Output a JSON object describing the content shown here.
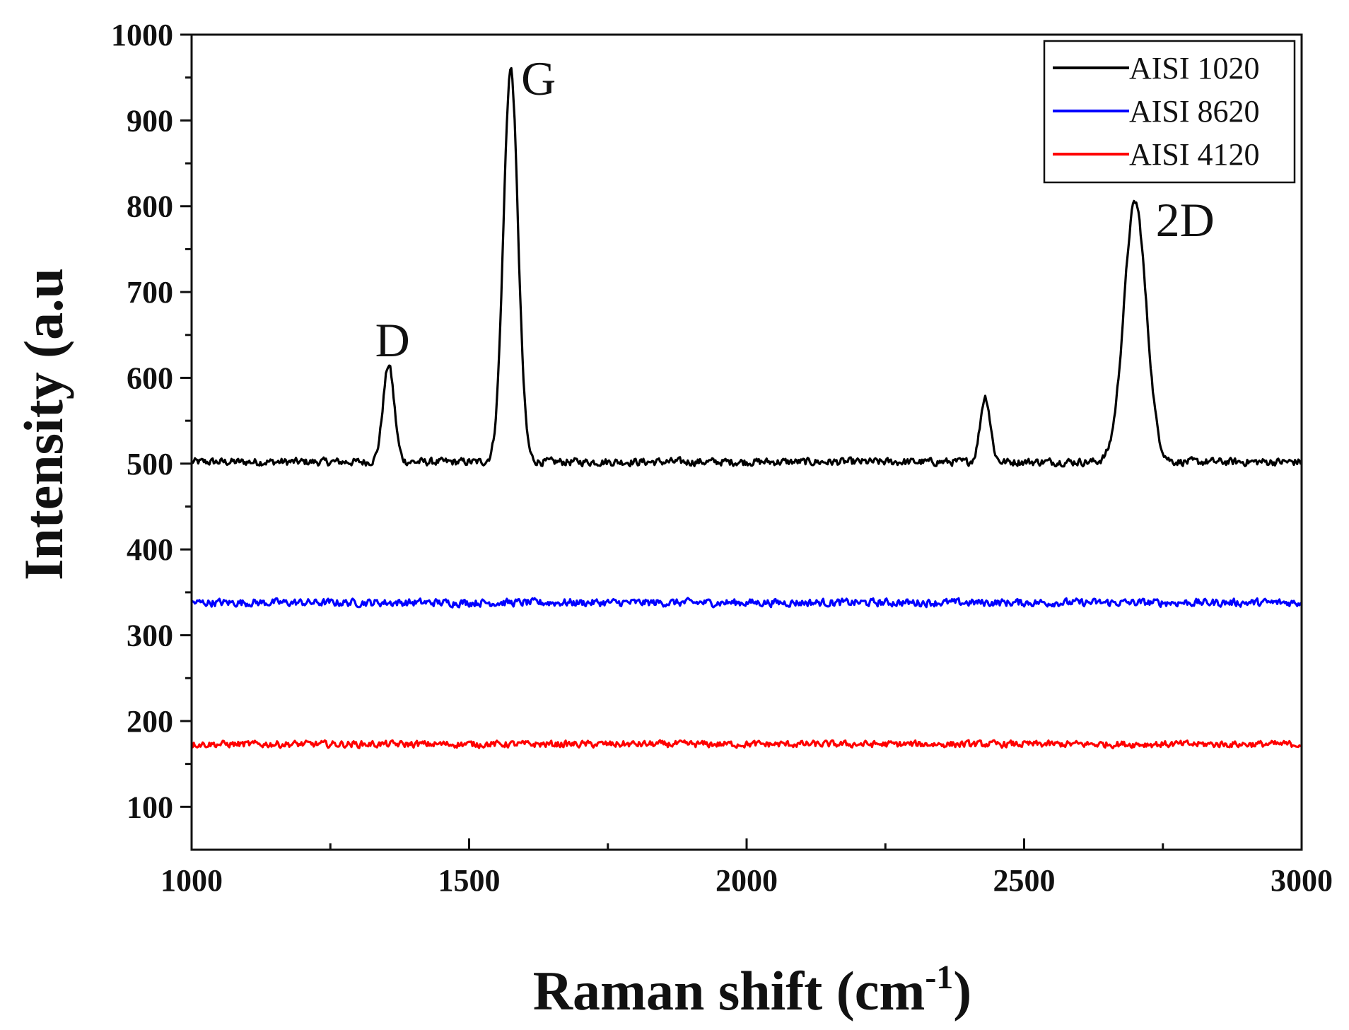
{
  "chart_data": {
    "type": "line",
    "title": "",
    "xlabel": "Raman shift (cm",
    "xlabel_sup": "-1",
    "xlabel_end": ")",
    "ylabel": "Intensity (a.u",
    "xlim": [
      1000,
      3000
    ],
    "ylim": [
      50,
      1000
    ],
    "x_ticks": [
      1000,
      1500,
      2000,
      2500,
      3000
    ],
    "x_tick_labels": [
      "1000",
      "1500",
      "2000",
      "2500",
      "3000"
    ],
    "y_ticks": [
      100,
      200,
      300,
      400,
      500,
      600,
      700,
      800,
      900,
      1000
    ],
    "y_tick_labels": [
      "100",
      "200",
      "300",
      "400",
      "500",
      "600",
      "700",
      "800",
      "900",
      "1000"
    ],
    "grid": false,
    "legend_position": "top-right",
    "series": [
      {
        "name": "AISI 1020",
        "color": "#000000",
        "baseline": 502,
        "noise": 4,
        "peaks": [
          {
            "label": "D",
            "x": 1355,
            "height": 615,
            "width": 10
          },
          {
            "label": "G",
            "x": 1575,
            "height": 960,
            "width": 13
          },
          {
            "label": "",
            "x": 2430,
            "height": 578,
            "width": 9
          },
          {
            "label": "2D",
            "x": 2700,
            "height": 805,
            "width": 20
          }
        ]
      },
      {
        "name": "AISI 8620",
        "color": "#0000ff",
        "baseline": 338,
        "noise": 4,
        "peaks": []
      },
      {
        "name": "AISI 4120",
        "color": "#ff0000",
        "baseline": 173,
        "noise": 3.5,
        "peaks": []
      }
    ],
    "annotations": [
      {
        "text": "D",
        "x": 1362,
        "y": 625
      },
      {
        "text": "G",
        "x": 1625,
        "y": 930
      },
      {
        "text": "2D",
        "x": 2790,
        "y": 765
      }
    ]
  }
}
